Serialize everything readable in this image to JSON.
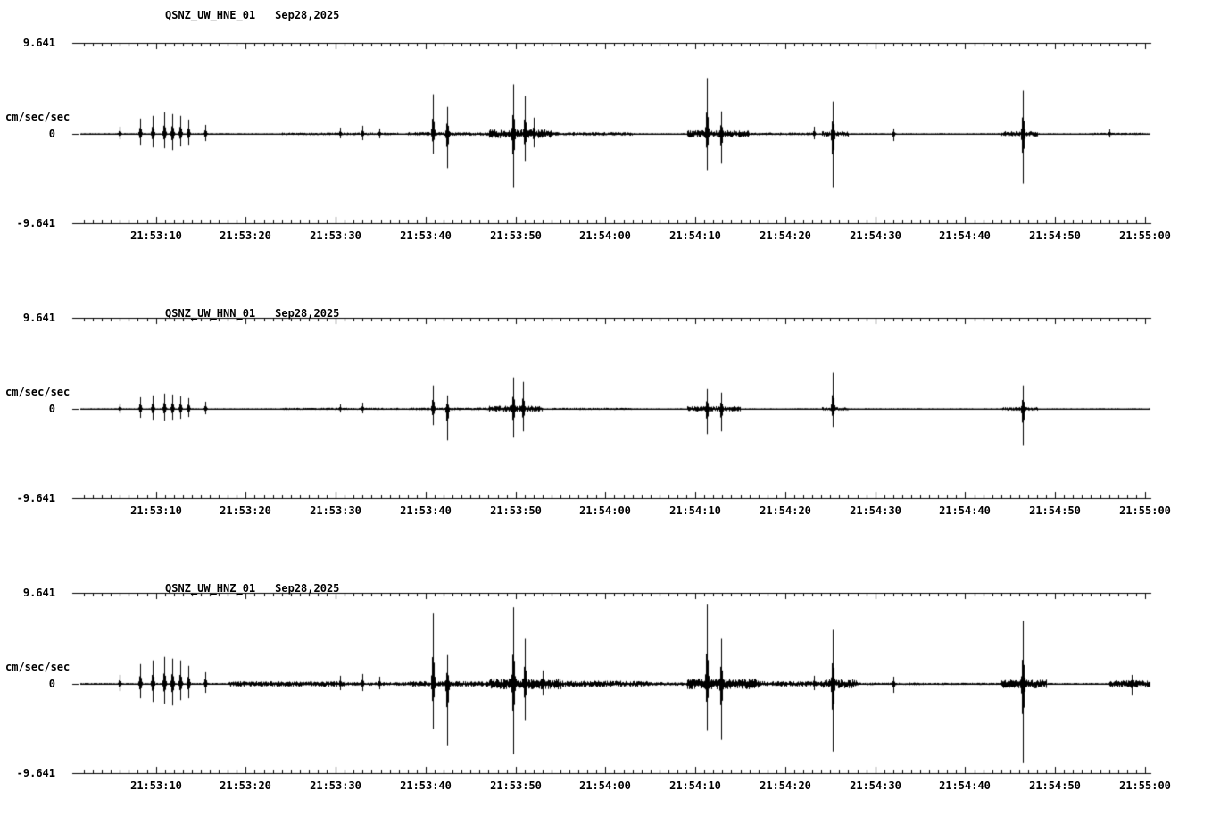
{
  "colors": {
    "background": "#ffffff",
    "trace": "#000000",
    "axis": "#000000",
    "text": "#000000"
  },
  "chart_data": [
    {
      "type": "line",
      "title": "QSNZ_UW_HNE_01",
      "date": "Sep28,2025",
      "ylabel": "cm/sec/sec",
      "ylim": [
        -9.641,
        9.641
      ],
      "ytick_labels": [
        "9.641",
        "0",
        "-9.641"
      ],
      "x_start_s": 1.4,
      "x_end_s": 120.7,
      "x_minor_tick_s": 1,
      "x_major_tick_s": 10,
      "xtick_times_s": [
        10,
        20,
        30,
        40,
        50,
        60,
        70,
        80,
        90,
        100,
        110,
        120
      ],
      "xtick_labels": [
        "21:53:10",
        "21:53:20",
        "21:53:30",
        "21:53:40",
        "21:53:50",
        "21:54:00",
        "21:54:10",
        "21:54:20",
        "21:54:30",
        "21:54:40",
        "21:54:50",
        "21:55:00"
      ],
      "noise_base_amp": 0.08,
      "noise_bursts": [
        {
          "t0": 24,
          "t1": 37,
          "amp": 0.14
        },
        {
          "t0": 38,
          "t1": 47,
          "amp": 0.19
        },
        {
          "t0": 47,
          "t1": 54,
          "amp": 0.48
        },
        {
          "t0": 54,
          "t1": 63,
          "amp": 0.19
        },
        {
          "t0": 69,
          "t1": 76,
          "amp": 0.39
        },
        {
          "t0": 76,
          "t1": 83,
          "amp": 0.14
        },
        {
          "t0": 84,
          "t1": 87,
          "amp": 0.29
        },
        {
          "t0": 104,
          "t1": 108,
          "amp": 0.29
        },
        {
          "t0": 114,
          "t1": 120,
          "amp": 0.12
        }
      ],
      "spikes": [
        {
          "t": 6,
          "up": 0.77,
          "down": 0.58
        },
        {
          "t": 8.2,
          "up": 1.64,
          "down": 1.16
        },
        {
          "t": 9.6,
          "up": 1.93,
          "down": 1.45
        },
        {
          "t": 10.9,
          "up": 2.31,
          "down": 1.54
        },
        {
          "t": 11.8,
          "up": 2.12,
          "down": 1.74
        },
        {
          "t": 12.7,
          "up": 1.93,
          "down": 1.35
        },
        {
          "t": 13.6,
          "up": 1.54,
          "down": 1.16
        },
        {
          "t": 15.5,
          "up": 0.96,
          "down": 0.77
        },
        {
          "t": 30.5,
          "up": 0.67,
          "down": 0.48
        },
        {
          "t": 33,
          "up": 0.87,
          "down": 0.67
        },
        {
          "t": 34.8,
          "up": 0.58,
          "down": 0.48
        },
        {
          "t": 40.8,
          "up": 4.24,
          "down": 2.12
        },
        {
          "t": 42.4,
          "up": 2.89,
          "down": 3.66
        },
        {
          "t": 49.7,
          "up": 5.3,
          "down": 5.78
        },
        {
          "t": 51,
          "up": 4.05,
          "down": 2.89
        },
        {
          "t": 52,
          "up": 1.74,
          "down": 1.45
        },
        {
          "t": 71.3,
          "up": 5.98,
          "down": 3.86
        },
        {
          "t": 72.9,
          "up": 2.41,
          "down": 3.18
        },
        {
          "t": 83.2,
          "up": 0.77,
          "down": 0.58
        },
        {
          "t": 85.3,
          "up": 3.47,
          "down": 5.78
        },
        {
          "t": 92,
          "up": 0.58,
          "down": 0.77
        },
        {
          "t": 106.4,
          "up": 4.63,
          "down": 5.3
        },
        {
          "t": 116,
          "up": 0.48,
          "down": 0.39
        }
      ]
    },
    {
      "type": "line",
      "title": "QSNZ_UW_HNN_01",
      "date": "Sep28,2025",
      "ylabel": "cm/sec/sec",
      "ylim": [
        -9.641,
        9.641
      ],
      "ytick_labels": [
        "9.641",
        "0",
        "-9.641"
      ],
      "x_start_s": 1.4,
      "x_end_s": 120.7,
      "x_minor_tick_s": 1,
      "x_major_tick_s": 10,
      "xtick_times_s": [
        10,
        20,
        30,
        40,
        50,
        60,
        70,
        80,
        90,
        100,
        110,
        120
      ],
      "xtick_labels": [
        "21:53:10",
        "21:53:20",
        "21:53:30",
        "21:53:40",
        "21:53:50",
        "21:54:00",
        "21:54:10",
        "21:54:20",
        "21:54:30",
        "21:54:40",
        "21:54:50",
        "21:55:00"
      ],
      "noise_base_amp": 0.07,
      "noise_bursts": [
        {
          "t0": 24,
          "t1": 37,
          "amp": 0.12
        },
        {
          "t0": 38,
          "t1": 47,
          "amp": 0.14
        },
        {
          "t0": 47,
          "t1": 53,
          "amp": 0.34
        },
        {
          "t0": 54,
          "t1": 63,
          "amp": 0.12
        },
        {
          "t0": 69,
          "t1": 75,
          "amp": 0.29
        },
        {
          "t0": 84,
          "t1": 87,
          "amp": 0.19
        },
        {
          "t0": 104,
          "t1": 108,
          "amp": 0.19
        }
      ],
      "spikes": [
        {
          "t": 6,
          "up": 0.58,
          "down": 0.48
        },
        {
          "t": 8.2,
          "up": 1.25,
          "down": 0.96
        },
        {
          "t": 9.6,
          "up": 1.45,
          "down": 1.16
        },
        {
          "t": 10.9,
          "up": 1.64,
          "down": 1.25
        },
        {
          "t": 11.8,
          "up": 1.54,
          "down": 1.16
        },
        {
          "t": 12.7,
          "up": 1.35,
          "down": 1.06
        },
        {
          "t": 13.6,
          "up": 1.16,
          "down": 0.87
        },
        {
          "t": 15.5,
          "up": 0.77,
          "down": 0.58
        },
        {
          "t": 30.5,
          "up": 0.48,
          "down": 0.39
        },
        {
          "t": 33,
          "up": 0.67,
          "down": 0.48
        },
        {
          "t": 40.8,
          "up": 2.51,
          "down": 1.74
        },
        {
          "t": 42.4,
          "up": 1.45,
          "down": 3.37
        },
        {
          "t": 49.7,
          "up": 3.37,
          "down": 3.08
        },
        {
          "t": 50.8,
          "up": 2.89,
          "down": 2.41
        },
        {
          "t": 71.3,
          "up": 2.12,
          "down": 2.7
        },
        {
          "t": 72.9,
          "up": 1.74,
          "down": 2.41
        },
        {
          "t": 85.3,
          "up": 3.86,
          "down": 1.93
        },
        {
          "t": 106.4,
          "up": 2.51,
          "down": 3.86
        }
      ]
    },
    {
      "type": "line",
      "title": "QSNZ_UW_HNZ_01",
      "date": "Sep28,2025",
      "ylabel": "cm/sec/sec",
      "ylim": [
        -9.641,
        9.641
      ],
      "ytick_labels": [
        "9.641",
        "0",
        "-9.641"
      ],
      "x_start_s": 1.4,
      "x_end_s": 120.7,
      "x_minor_tick_s": 1,
      "x_major_tick_s": 10,
      "xtick_times_s": [
        10,
        20,
        30,
        40,
        50,
        60,
        70,
        80,
        90,
        100,
        110,
        120
      ],
      "xtick_labels": [
        "21:53:10",
        "21:53:20",
        "21:53:30",
        "21:53:40",
        "21:53:50",
        "21:54:00",
        "21:54:10",
        "21:54:20",
        "21:54:30",
        "21:54:40",
        "21:54:50",
        "21:55:00"
      ],
      "noise_base_amp": 0.1,
      "noise_bursts": [
        {
          "t0": 18,
          "t1": 31,
          "amp": 0.29
        },
        {
          "t0": 31,
          "t1": 38,
          "amp": 0.19
        },
        {
          "t0": 38,
          "t1": 47,
          "amp": 0.29
        },
        {
          "t0": 47,
          "t1": 55,
          "amp": 0.58
        },
        {
          "t0": 55,
          "t1": 65,
          "amp": 0.34
        },
        {
          "t0": 65,
          "t1": 69,
          "amp": 0.19
        },
        {
          "t0": 69,
          "t1": 77,
          "amp": 0.58
        },
        {
          "t0": 77,
          "t1": 84,
          "amp": 0.29
        },
        {
          "t0": 84,
          "t1": 88,
          "amp": 0.48
        },
        {
          "t0": 88,
          "t1": 95,
          "amp": 0.14
        },
        {
          "t0": 95,
          "t1": 104,
          "amp": 0.12
        },
        {
          "t0": 104,
          "t1": 109,
          "amp": 0.48
        },
        {
          "t0": 109,
          "t1": 116,
          "amp": 0.1
        },
        {
          "t0": 116,
          "t1": 121,
          "amp": 0.39
        }
      ],
      "spikes": [
        {
          "t": 6,
          "up": 0.96,
          "down": 0.77
        },
        {
          "t": 8.2,
          "up": 2.12,
          "down": 1.54
        },
        {
          "t": 9.6,
          "up": 2.51,
          "down": 1.93
        },
        {
          "t": 10.9,
          "up": 2.89,
          "down": 2.12
        },
        {
          "t": 11.8,
          "up": 2.7,
          "down": 2.31
        },
        {
          "t": 12.7,
          "up": 2.51,
          "down": 1.74
        },
        {
          "t": 13.6,
          "up": 1.93,
          "down": 1.54
        },
        {
          "t": 15.5,
          "up": 1.25,
          "down": 0.96
        },
        {
          "t": 30.5,
          "up": 0.87,
          "down": 0.67
        },
        {
          "t": 33,
          "up": 1.06,
          "down": 0.77
        },
        {
          "t": 34.8,
          "up": 0.77,
          "down": 0.58
        },
        {
          "t": 40.8,
          "up": 7.52,
          "down": 4.82
        },
        {
          "t": 42.4,
          "up": 3.08,
          "down": 6.56
        },
        {
          "t": 49.7,
          "up": 8.19,
          "down": 7.52
        },
        {
          "t": 51,
          "up": 4.82,
          "down": 3.86
        },
        {
          "t": 53,
          "up": 1.45,
          "down": 1.16
        },
        {
          "t": 71.3,
          "up": 8.48,
          "down": 5.01
        },
        {
          "t": 72.9,
          "up": 4.82,
          "down": 5.98
        },
        {
          "t": 83.2,
          "up": 0.87,
          "down": 0.67
        },
        {
          "t": 85.3,
          "up": 5.78,
          "down": 7.23
        },
        {
          "t": 92,
          "up": 0.77,
          "down": 0.96
        },
        {
          "t": 106.4,
          "up": 6.75,
          "down": 8.48
        },
        {
          "t": 118.5,
          "up": 0.96,
          "down": 1.16
        }
      ]
    }
  ]
}
